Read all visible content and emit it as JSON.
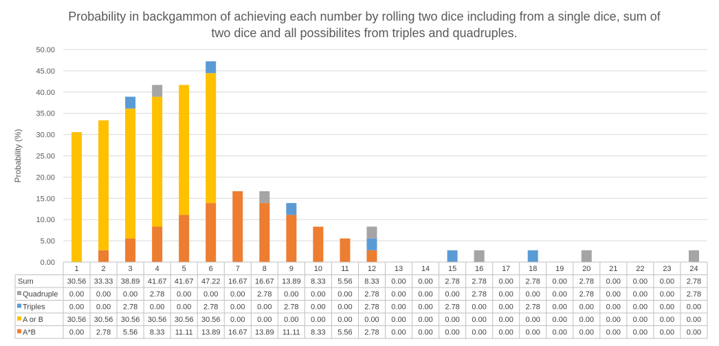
{
  "chart_data": {
    "type": "bar",
    "stacked": true,
    "title_lines": [
      "Probability in backgammon of achieving each number by rolling two dice including from a single dice, sum of",
      "two dice and all possibilites from triples and quadruples."
    ],
    "xlabel": "",
    "ylabel": "Probability (%)",
    "ylim": [
      0,
      50
    ],
    "yticks": [
      "0.00",
      "5.00",
      "10.00",
      "15.00",
      "20.00",
      "25.00",
      "30.00",
      "35.00",
      "40.00",
      "45.00",
      "50.00"
    ],
    "grid": true,
    "categories": [
      "1",
      "2",
      "3",
      "4",
      "5",
      "6",
      "7",
      "8",
      "9",
      "10",
      "11",
      "12",
      "13",
      "14",
      "15",
      "16",
      "17",
      "18",
      "19",
      "20",
      "21",
      "22",
      "23",
      "24"
    ],
    "total_row": {
      "name": "Sum",
      "values": [
        "30.56",
        "33.33",
        "38.89",
        "41.67",
        "41.67",
        "47.22",
        "16.67",
        "16.67",
        "13.89",
        "8.33",
        "5.56",
        "8.33",
        "0.00",
        "0.00",
        "2.78",
        "2.78",
        "0.00",
        "2.78",
        "0.00",
        "2.78",
        "0.00",
        "0.00",
        "0.00",
        "2.78"
      ]
    },
    "series": [
      {
        "name": "Quadruple",
        "color": "#a5a5a5",
        "values": [
          "0.00",
          "0.00",
          "0.00",
          "2.78",
          "0.00",
          "0.00",
          "0.00",
          "2.78",
          "0.00",
          "0.00",
          "0.00",
          "2.78",
          "0.00",
          "0.00",
          "0.00",
          "2.78",
          "0.00",
          "0.00",
          "0.00",
          "2.78",
          "0.00",
          "0.00",
          "0.00",
          "2.78"
        ]
      },
      {
        "name": "Triples",
        "color": "#5b9bd5",
        "values": [
          "0.00",
          "0.00",
          "2.78",
          "0.00",
          "0.00",
          "2.78",
          "0.00",
          "0.00",
          "2.78",
          "0.00",
          "0.00",
          "2.78",
          "0.00",
          "0.00",
          "2.78",
          "0.00",
          "0.00",
          "2.78",
          "0.00",
          "0.00",
          "0.00",
          "0.00",
          "0.00",
          "0.00"
        ]
      },
      {
        "name": "A or B",
        "color": "#ffc000",
        "values": [
          "30.56",
          "30.56",
          "30.56",
          "30.56",
          "30.56",
          "30.56",
          "0.00",
          "0.00",
          "0.00",
          "0.00",
          "0.00",
          "0.00",
          "0.00",
          "0.00",
          "0.00",
          "0.00",
          "0.00",
          "0.00",
          "0.00",
          "0.00",
          "0.00",
          "0.00",
          "0.00",
          "0.00"
        ]
      },
      {
        "name": "A*B",
        "color": "#ed7d31",
        "values": [
          "0.00",
          "2.78",
          "5.56",
          "8.33",
          "11.11",
          "13.89",
          "16.67",
          "13.89",
          "11.11",
          "8.33",
          "5.56",
          "2.78",
          "0.00",
          "0.00",
          "0.00",
          "0.00",
          "0.00",
          "0.00",
          "0.00",
          "0.00",
          "0.00",
          "0.00",
          "0.00",
          "0.00"
        ]
      }
    ],
    "stack_order": [
      "A*B",
      "A or B",
      "Triples",
      "Quadruple"
    ]
  }
}
